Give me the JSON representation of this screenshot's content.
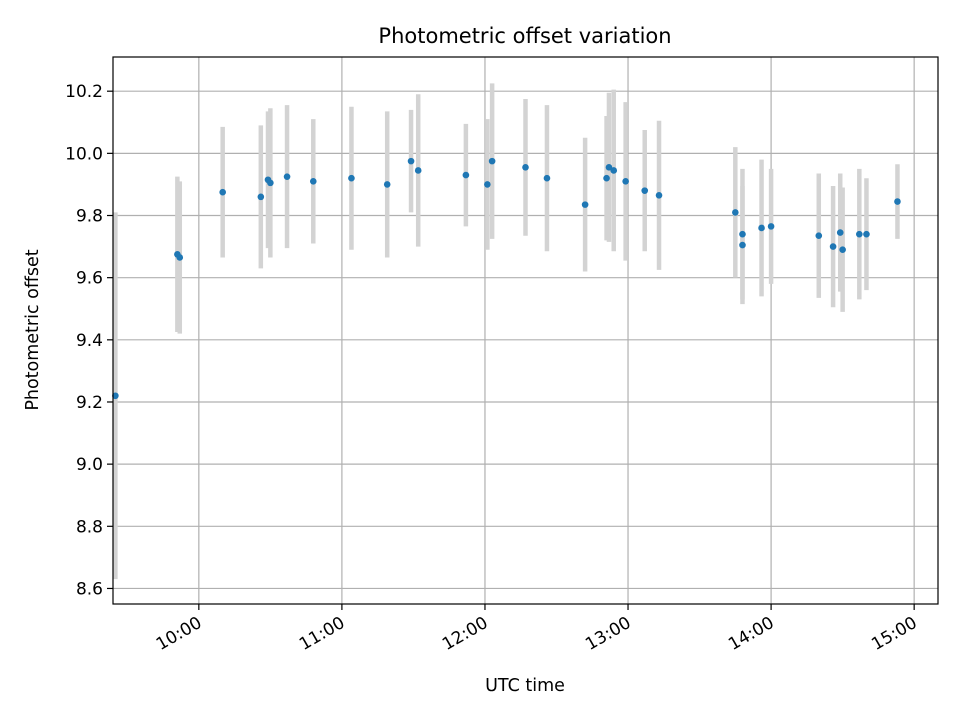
{
  "chart_data": {
    "type": "scatter",
    "title": "Photometric offset variation",
    "xlabel": "UTC time",
    "ylabel": "Photometric offset",
    "xlim": [
      "09:24",
      "15:10"
    ],
    "ylim": [
      8.55,
      10.31
    ],
    "x_ticks": [
      "10:00",
      "11:00",
      "12:00",
      "13:00",
      "14:00",
      "15:00"
    ],
    "y_ticks": [
      "8.6",
      "8.8",
      "9.0",
      "9.2",
      "9.4",
      "9.6",
      "9.8",
      "10.0",
      "10.2"
    ],
    "grid": true,
    "colors": {
      "point": "#1f77b4",
      "error_bar": "#d3d3d3",
      "grid": "#b0b0b0"
    },
    "points": [
      {
        "x": "09:25",
        "y": 9.22,
        "err": 0.59
      },
      {
        "x": "09:51",
        "y": 9.675,
        "err": 0.25
      },
      {
        "x": "09:52",
        "y": 9.665,
        "err": 0.245
      },
      {
        "x": "10:10",
        "y": 9.875,
        "err": 0.21
      },
      {
        "x": "10:26",
        "y": 9.86,
        "err": 0.23
      },
      {
        "x": "10:29",
        "y": 9.915,
        "err": 0.22
      },
      {
        "x": "10:30",
        "y": 9.905,
        "err": 0.24
      },
      {
        "x": "10:37",
        "y": 9.925,
        "err": 0.23
      },
      {
        "x": "10:48",
        "y": 9.91,
        "err": 0.2
      },
      {
        "x": "11:04",
        "y": 9.92,
        "err": 0.23
      },
      {
        "x": "11:19",
        "y": 9.9,
        "err": 0.235
      },
      {
        "x": "11:29",
        "y": 9.975,
        "err": 0.165
      },
      {
        "x": "11:32",
        "y": 9.945,
        "err": 0.245
      },
      {
        "x": "11:52",
        "y": 9.93,
        "err": 0.165
      },
      {
        "x": "12:01",
        "y": 9.9,
        "err": 0.21
      },
      {
        "x": "12:03",
        "y": 9.975,
        "err": 0.25
      },
      {
        "x": "12:17",
        "y": 9.955,
        "err": 0.22
      },
      {
        "x": "12:26",
        "y": 9.92,
        "err": 0.235
      },
      {
        "x": "12:42",
        "y": 9.835,
        "err": 0.215
      },
      {
        "x": "12:51",
        "y": 9.92,
        "err": 0.2
      },
      {
        "x": "12:52",
        "y": 9.955,
        "err": 0.24
      },
      {
        "x": "12:54",
        "y": 9.945,
        "err": 0.26
      },
      {
        "x": "12:59",
        "y": 9.91,
        "err": 0.255
      },
      {
        "x": "13:07",
        "y": 9.88,
        "err": 0.195
      },
      {
        "x": "13:13",
        "y": 9.865,
        "err": 0.24
      },
      {
        "x": "13:45",
        "y": 9.81,
        "err": 0.21
      },
      {
        "x": "13:48",
        "y": 9.705,
        "err": 0.19
      },
      {
        "x": "13:48",
        "y": 9.74,
        "err": 0.21
      },
      {
        "x": "13:56",
        "y": 9.76,
        "err": 0.22
      },
      {
        "x": "14:00",
        "y": 9.765,
        "err": 0.185
      },
      {
        "x": "14:20",
        "y": 9.735,
        "err": 0.2
      },
      {
        "x": "14:26",
        "y": 9.7,
        "err": 0.195
      },
      {
        "x": "14:29",
        "y": 9.745,
        "err": 0.19
      },
      {
        "x": "14:30",
        "y": 9.69,
        "err": 0.2
      },
      {
        "x": "14:37",
        "y": 9.74,
        "err": 0.21
      },
      {
        "x": "14:40",
        "y": 9.74,
        "err": 0.18
      },
      {
        "x": "14:53",
        "y": 9.845,
        "err": 0.12
      }
    ]
  }
}
